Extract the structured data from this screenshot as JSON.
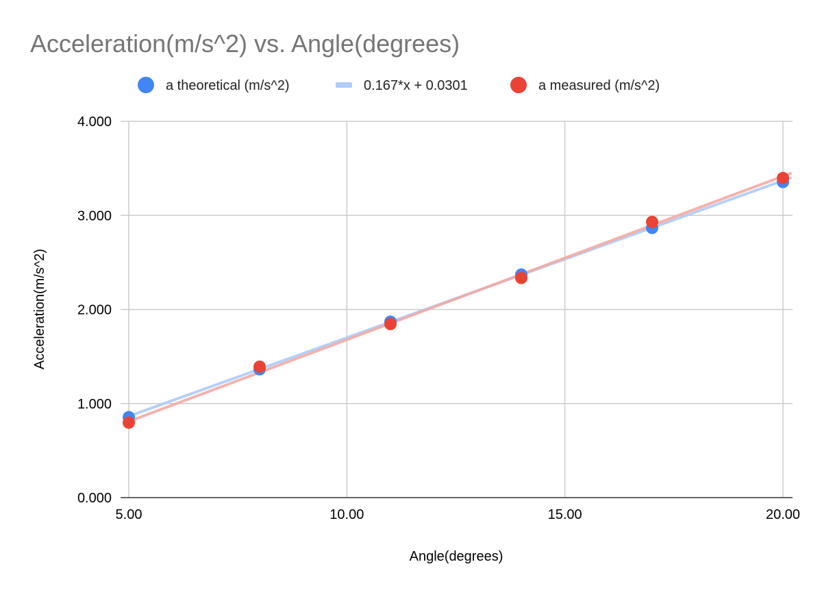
{
  "chart_data": {
    "type": "scatter",
    "title": "Acceleration(m/s^2) vs. Angle(degrees)",
    "xlabel": "Angle(degrees)",
    "ylabel": "Acceleration(m/s^2)",
    "xlim": [
      5,
      20.2
    ],
    "ylim": [
      0,
      4
    ],
    "x_ticks": [
      5,
      10,
      15,
      20
    ],
    "x_tick_labels": [
      "5.00",
      "10.00",
      "15.00",
      "20.00"
    ],
    "y_ticks": [
      0,
      1,
      2,
      3,
      4
    ],
    "y_tick_labels": [
      "0.000",
      "1.000",
      "2.000",
      "3.000",
      "4.000"
    ],
    "grid": true,
    "legend_position": "top",
    "series": [
      {
        "name": "a theoretical (m/s^2)",
        "kind": "points",
        "color": "#4285f4",
        "x": [
          5,
          8,
          11,
          14,
          17,
          20
        ],
        "y": [
          0.855,
          1.364,
          1.87,
          2.371,
          2.867,
          3.355
        ]
      },
      {
        "name": "0.167*x + 0.0301",
        "kind": "trendline",
        "color": "#aecbfa",
        "slope": 0.167,
        "intercept": 0.0301,
        "x_range": [
          4.9,
          20.2
        ]
      },
      {
        "name": "a measured (m/s^2)",
        "kind": "points",
        "color": "#ea4335",
        "x": [
          5,
          8,
          11,
          14,
          17,
          20
        ],
        "y": [
          0.797,
          1.392,
          1.845,
          2.335,
          2.93,
          3.397
        ]
      },
      {
        "name": "",
        "kind": "trendline",
        "color": "#f4aaa4",
        "slope": 0.1738,
        "intercept": -0.0595,
        "x_range": [
          4.9,
          20.2
        ]
      }
    ],
    "legend": [
      {
        "label": "a theoretical (m/s^2)",
        "marker": "circle",
        "color": "#4285f4"
      },
      {
        "label": "0.167*x + 0.0301",
        "marker": "line",
        "color": "#aecbfa"
      },
      {
        "label": "a measured (m/s^2)",
        "marker": "circle",
        "color": "#ea4335"
      }
    ]
  }
}
